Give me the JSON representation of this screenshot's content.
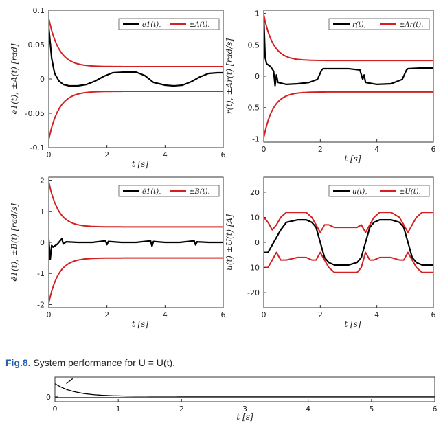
{
  "caption": {
    "label": "Fig.8.",
    "text": " System performance for U = U(t)."
  },
  "colors": {
    "signal": "#000000",
    "bound": "#d42020",
    "caption_label": "#1f5fae"
  },
  "chart_data": [
    {
      "type": "line",
      "ylabel": "e1(t), ±A(t) [rad]",
      "xlabel": "t [s]",
      "xlim": [
        0,
        6
      ],
      "ylim": [
        -0.1,
        0.1
      ],
      "xticks": [
        0,
        2,
        4,
        6
      ],
      "yticks": [
        -0.1,
        -0.05,
        0,
        0.05,
        0.1
      ],
      "ytick_labels": [
        "-0.1",
        "-0.05",
        "0",
        "0.05",
        "0.1"
      ],
      "grid": false,
      "legend": "top-right",
      "legend_entries": [
        "e1(t),",
        "±A(t)."
      ],
      "series": [
        {
          "name": "e1(t)",
          "color": "#000000",
          "x": [
            0,
            0.1,
            0.2,
            0.35,
            0.5,
            0.7,
            1.0,
            1.3,
            1.6,
            1.9,
            2.2,
            2.6,
            3.0,
            3.3,
            3.6,
            4.0,
            4.3,
            4.6,
            4.9,
            5.2,
            5.5,
            5.8,
            6.0
          ],
          "y": [
            0.075,
            0.03,
            0.008,
            -0.003,
            -0.008,
            -0.01,
            -0.01,
            -0.008,
            -0.003,
            0.004,
            0.009,
            0.01,
            0.01,
            0.005,
            -0.005,
            -0.009,
            -0.01,
            -0.009,
            -0.004,
            0.003,
            0.008,
            0.009,
            0.009
          ]
        },
        {
          "name": "+A(t)",
          "color": "#d42020",
          "bound": {
            "start": 0.088,
            "end": 0.018,
            "tau": 0.35,
            "sign": 1
          }
        },
        {
          "name": "-A(t)",
          "color": "#d42020",
          "bound": {
            "start": 0.088,
            "end": 0.018,
            "tau": 0.35,
            "sign": -1
          }
        }
      ]
    },
    {
      "type": "line",
      "ylabel": "r(t), ±Ar(t) [rad/s]",
      "xlabel": "t [s]",
      "xlim": [
        0,
        6
      ],
      "ylim": [
        -1.05,
        1.05
      ],
      "xticks": [
        0,
        2,
        4,
        6
      ],
      "yticks": [
        -1,
        -0.5,
        0,
        0.5,
        1
      ],
      "ytick_labels": [
        "-1",
        "-0.5",
        "0",
        "0.5",
        "1"
      ],
      "grid": false,
      "legend": "top-right",
      "legend_entries": [
        "r(t),",
        "±Ar(t)."
      ],
      "series": [
        {
          "name": "r(t)",
          "color": "#000000",
          "x": [
            0,
            0.05,
            0.1,
            0.25,
            0.35,
            0.4,
            0.45,
            0.5,
            0.8,
            1.2,
            1.6,
            1.9,
            2.0,
            2.05,
            2.1,
            2.5,
            3.0,
            3.4,
            3.5,
            3.55,
            3.6,
            4.0,
            4.5,
            4.9,
            5.0,
            5.05,
            5.1,
            5.5,
            6.0
          ],
          "y": [
            0.95,
            0.3,
            0.2,
            0.15,
            0.08,
            -0.15,
            0.02,
            -0.1,
            -0.13,
            -0.12,
            -0.1,
            -0.05,
            0.05,
            0.1,
            0.12,
            0.12,
            0.12,
            0.1,
            -0.05,
            0.02,
            -0.1,
            -0.13,
            -0.12,
            -0.05,
            0.05,
            0.1,
            0.12,
            0.13,
            0.13
          ]
        },
        {
          "name": "+Ar(t)",
          "color": "#d42020",
          "bound": {
            "start": 0.98,
            "end": 0.25,
            "tau": 0.33,
            "sign": 1
          }
        },
        {
          "name": "-Ar(t)",
          "color": "#d42020",
          "bound": {
            "start": 0.98,
            "end": 0.25,
            "tau": 0.33,
            "sign": -1
          }
        }
      ]
    },
    {
      "type": "line",
      "ylabel": "ė1(t), ±B(t) [rad/s]",
      "xlabel": "t [s]",
      "xlim": [
        0,
        6
      ],
      "ylim": [
        -2.1,
        2.1
      ],
      "xticks": [
        0,
        2,
        4,
        6
      ],
      "yticks": [
        -2,
        -1,
        0,
        1,
        2
      ],
      "ytick_labels": [
        "-2",
        "-1",
        "0",
        "1",
        "2"
      ],
      "grid": false,
      "legend": "top-right",
      "legend_entries": [
        "ė1(t),",
        "±B(t)."
      ],
      "series": [
        {
          "name": "ė1(t)",
          "color": "#000000",
          "x": [
            0,
            0.05,
            0.1,
            0.15,
            0.3,
            0.45,
            0.5,
            0.6,
            1.0,
            1.5,
            1.95,
            2.0,
            2.05,
            2.5,
            3.0,
            3.5,
            3.55,
            3.6,
            4.0,
            4.5,
            5.0,
            5.05,
            5.1,
            5.5,
            6.0
          ],
          "y": [
            0.1,
            -0.55,
            -0.1,
            -0.15,
            -0.05,
            0.12,
            -0.05,
            0.02,
            0.0,
            0.0,
            0.05,
            -0.07,
            0.03,
            0.0,
            0.0,
            0.05,
            -0.12,
            0.03,
            0.0,
            0.0,
            0.05,
            -0.08,
            0.02,
            0.0,
            0.0
          ]
        },
        {
          "name": "+B(t)",
          "color": "#d42020",
          "bound": {
            "start": 1.95,
            "end": 0.5,
            "tau": 0.33,
            "sign": 1
          }
        },
        {
          "name": "-B(t)",
          "color": "#d42020",
          "bound": {
            "start": 1.95,
            "end": 0.5,
            "tau": 0.33,
            "sign": -1
          }
        }
      ]
    },
    {
      "type": "line",
      "ylabel": "u(t) ±U(t) [A]",
      "xlabel": "t [s]",
      "xlim": [
        0,
        6
      ],
      "ylim": [
        -26,
        26
      ],
      "xticks": [
        0,
        2,
        4,
        6
      ],
      "yticks": [
        -20,
        -10,
        0,
        10,
        20
      ],
      "ytick_labels": [
        "-20",
        "-10",
        "0",
        "10",
        "20"
      ],
      "grid": false,
      "legend": "top-right",
      "legend_entries": [
        "u(t),",
        "±U(t)."
      ],
      "series": [
        {
          "name": "u(t)",
          "color": "#000000",
          "x": [
            0,
            0.15,
            0.3,
            0.45,
            0.6,
            0.8,
            1.2,
            1.5,
            1.7,
            1.85,
            2.0,
            2.15,
            2.3,
            2.5,
            3.0,
            3.3,
            3.45,
            3.6,
            3.75,
            3.9,
            4.1,
            4.5,
            4.8,
            4.95,
            5.1,
            5.25,
            5.4,
            5.6,
            6.0
          ],
          "y": [
            -4,
            -4,
            -1,
            2,
            5,
            8,
            9,
            9,
            8,
            6,
            0,
            -6,
            -8,
            -9,
            -9,
            -8,
            -6,
            0,
            6,
            8,
            9,
            9,
            8,
            6,
            0,
            -6,
            -8,
            -9,
            -9
          ]
        },
        {
          "name": "+U(t)",
          "color": "#d42020",
          "x": [
            0,
            0.15,
            0.3,
            0.45,
            0.6,
            0.8,
            1.2,
            1.5,
            1.7,
            1.85,
            2.0,
            2.15,
            2.3,
            2.5,
            3.0,
            3.3,
            3.45,
            3.6,
            3.75,
            3.9,
            4.1,
            4.5,
            4.8,
            4.95,
            5.1,
            5.25,
            5.4,
            5.6,
            6.0
          ],
          "y": [
            10,
            8,
            5,
            7,
            10,
            12,
            12,
            12,
            10,
            7,
            4,
            7,
            7,
            6,
            6,
            6,
            7,
            4,
            7,
            10,
            12,
            12,
            10,
            7,
            4,
            7,
            10,
            12,
            12
          ]
        },
        {
          "name": "-U(t)",
          "color": "#d42020",
          "x": [
            0,
            0.15,
            0.3,
            0.45,
            0.6,
            0.8,
            1.2,
            1.5,
            1.7,
            1.85,
            2.0,
            2.15,
            2.3,
            2.5,
            3.0,
            3.3,
            3.45,
            3.6,
            3.75,
            3.9,
            4.1,
            4.5,
            4.8,
            4.95,
            5.1,
            5.25,
            5.4,
            5.6,
            6.0
          ],
          "y": [
            -10,
            -10,
            -7,
            -4,
            -7,
            -7,
            -6,
            -6,
            -7,
            -7,
            -4,
            -7,
            -10,
            -12,
            -12,
            -12,
            -10,
            -4,
            -7,
            -7,
            -6,
            -6,
            -7,
            -7,
            -4,
            -7,
            -10,
            -12,
            -12
          ]
        }
      ]
    },
    {
      "type": "line",
      "xlabel": "t [s]",
      "xlim": [
        0,
        6
      ],
      "ylim": [
        -0.3,
        1.2
      ],
      "xticks": [
        0,
        1,
        2,
        3,
        4,
        5,
        6
      ],
      "yticks": [
        0
      ],
      "ytick_labels": [
        "0"
      ],
      "grid": false,
      "series": [
        {
          "name": "",
          "color": "#000000",
          "bound": {
            "start": 0.8,
            "end": 0.03,
            "tau": 0.3,
            "sign": 1
          }
        },
        {
          "name": "",
          "color": "#000000",
          "x": [
            0,
            6
          ],
          "y": [
            -0.05,
            -0.05
          ]
        },
        {
          "name": "",
          "color": "#000000",
          "x": [
            0.18,
            0.28
          ],
          "y": [
            0.8,
            1.1
          ]
        }
      ]
    }
  ]
}
